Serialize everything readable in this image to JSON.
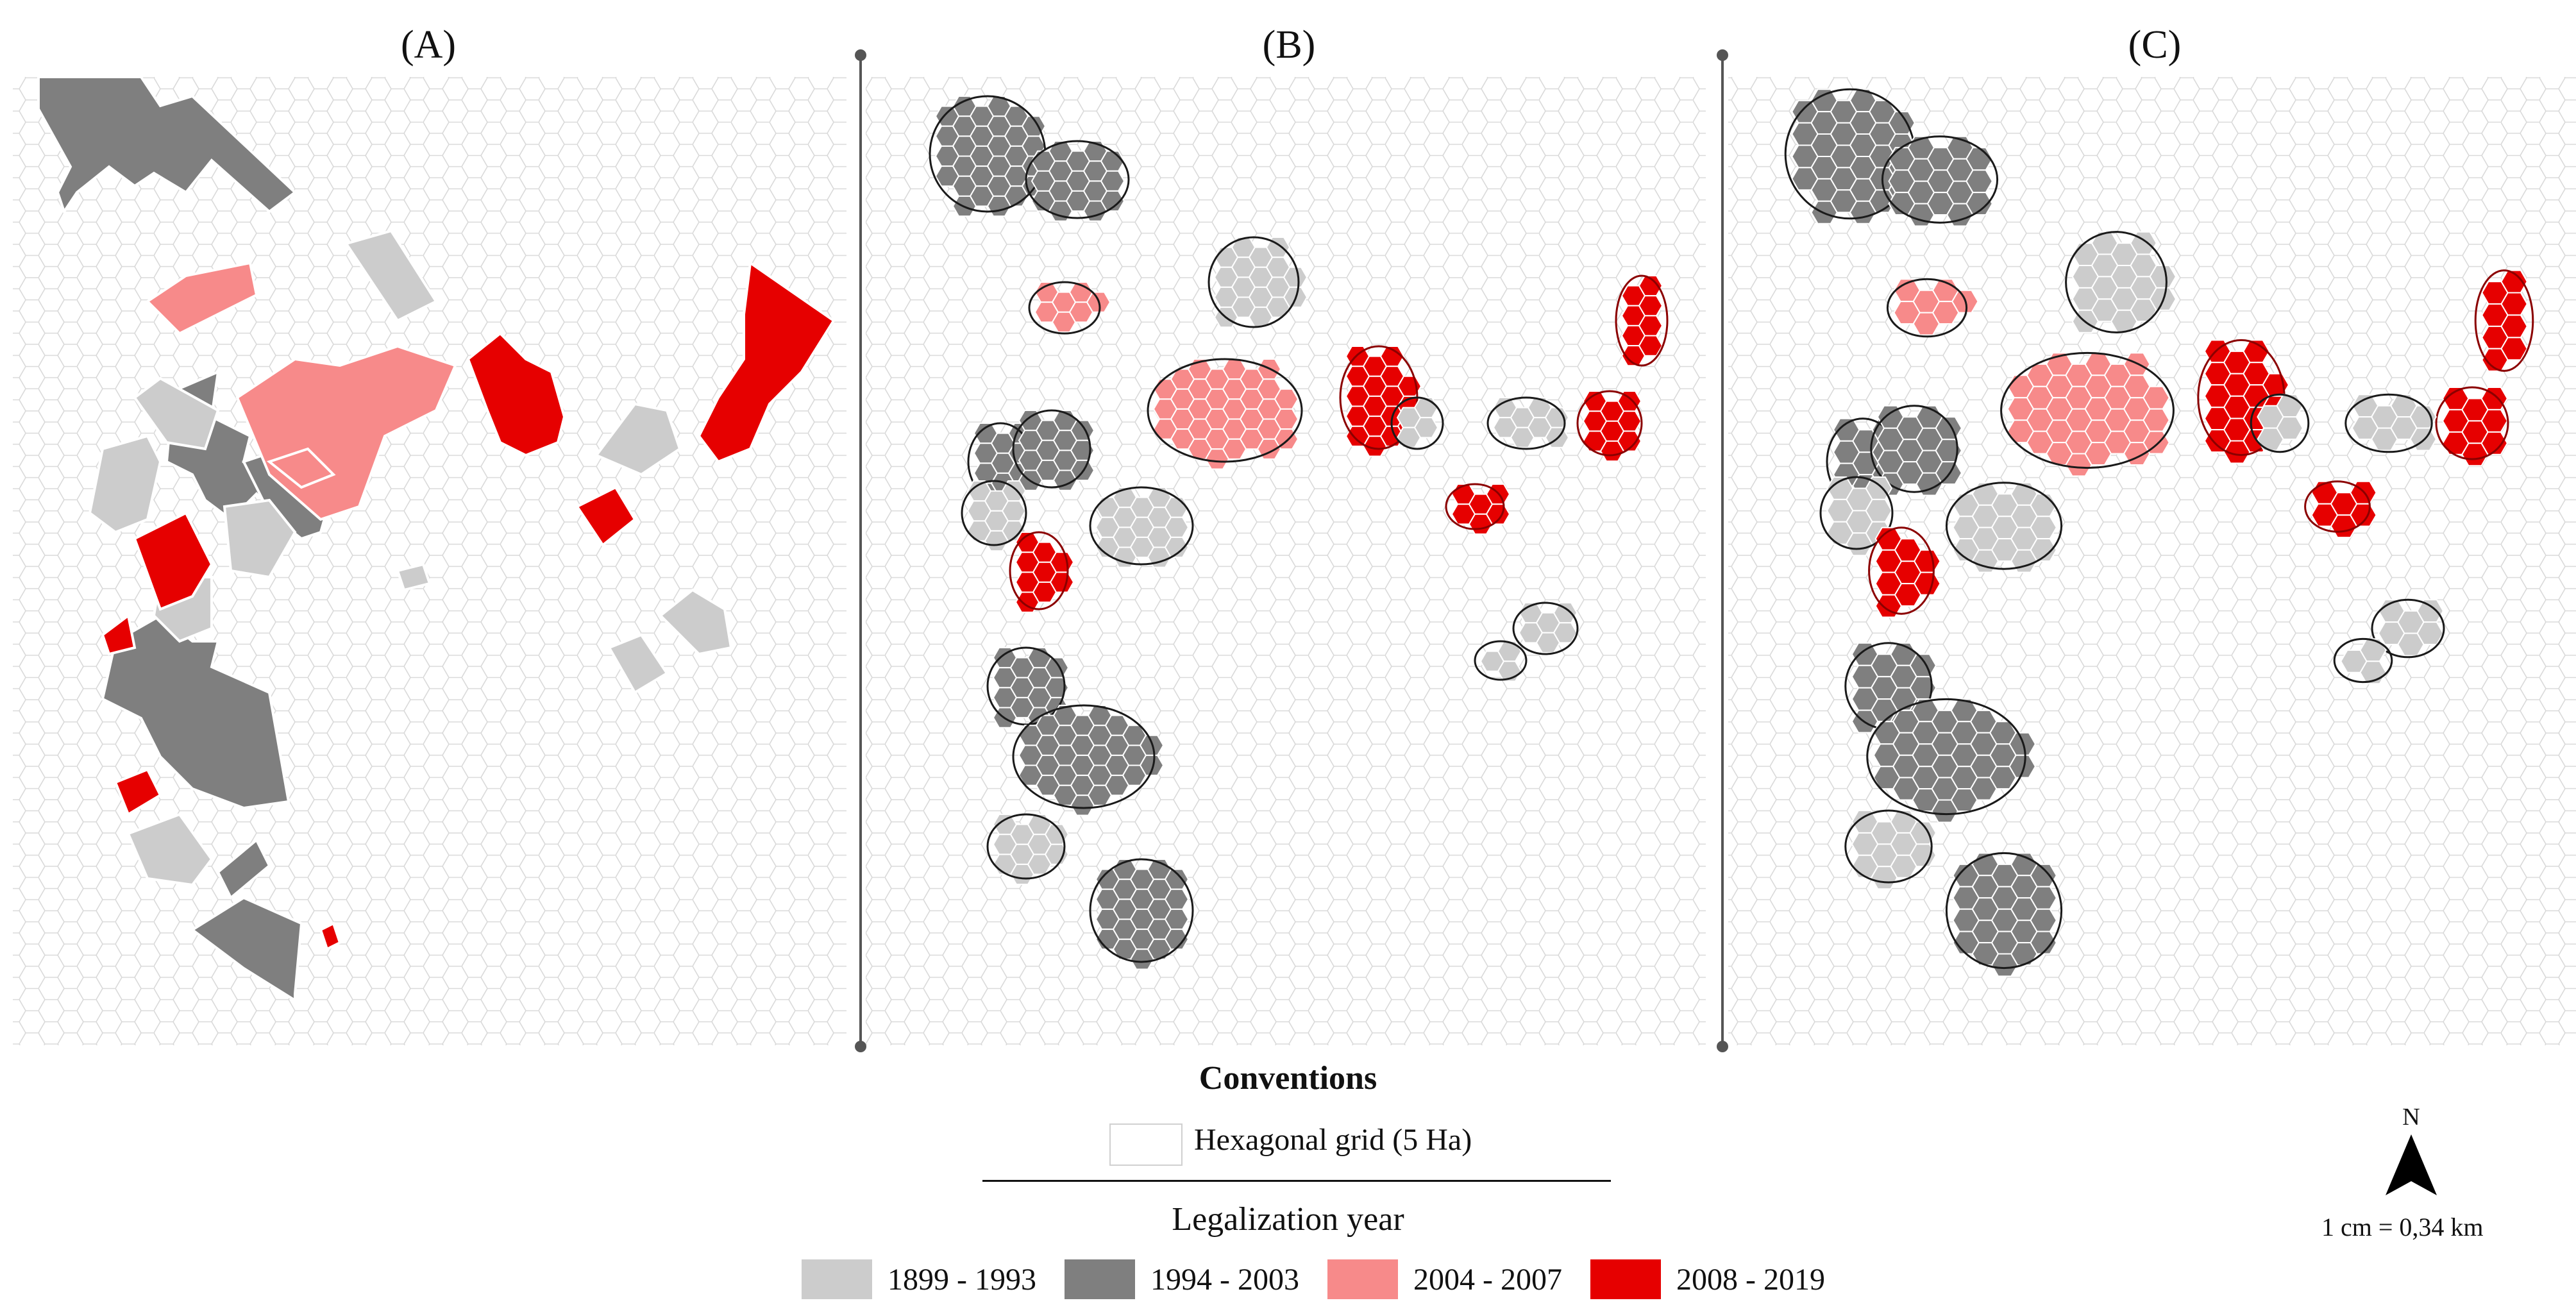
{
  "panels": [
    {
      "label": "(A)"
    },
    {
      "label": "(B)"
    },
    {
      "label": "(C)"
    }
  ],
  "legend": {
    "title": "Conventions",
    "grid_label": "Hexagonal grid (5 Ha)",
    "subtitle": "Legalization year",
    "classes": [
      {
        "label": "1899 - 1993",
        "color": "#cccccc"
      },
      {
        "label": "1994 - 2003",
        "color": "#7f7f7f"
      },
      {
        "label": "2004 - 2007",
        "color": "#f78a8a"
      },
      {
        "label": "2008 - 2019",
        "color": "#e60000"
      }
    ]
  },
  "north": {
    "letter": "N",
    "icon": "north-arrow-icon"
  },
  "scale": {
    "text": "1 cm = 0,34 km"
  }
}
